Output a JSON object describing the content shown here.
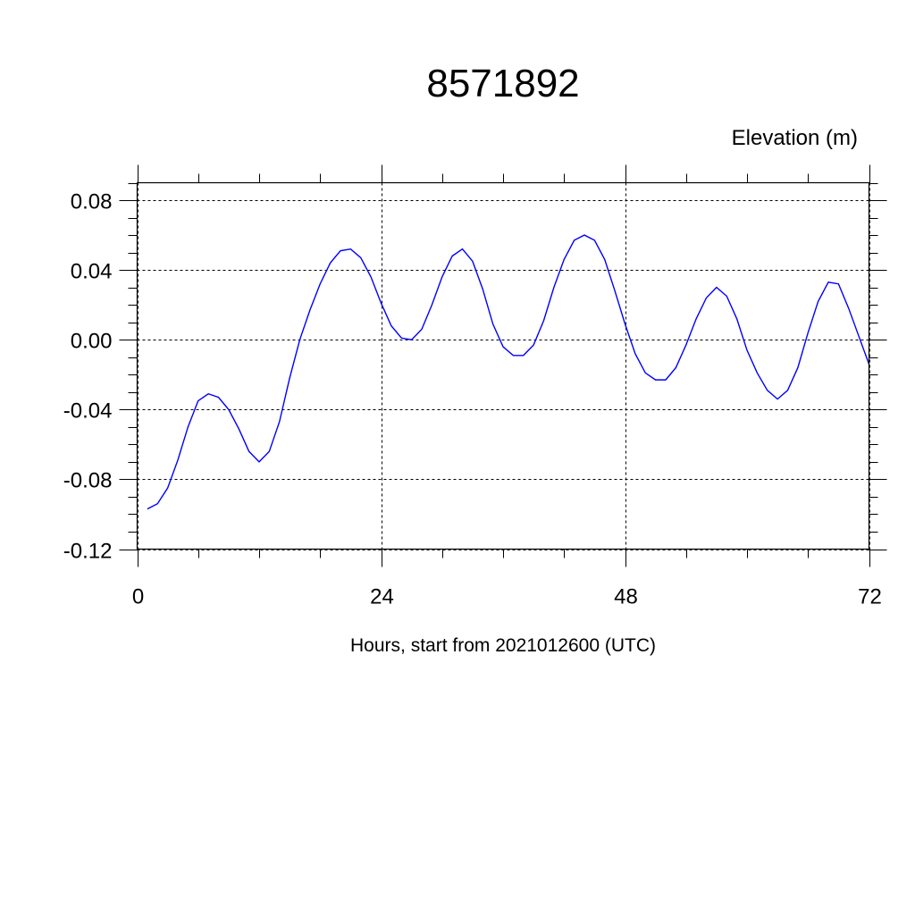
{
  "chart_data": {
    "type": "line",
    "title": "8571892",
    "ylabel": "Elevation (m)",
    "xlabel": "Hours, start from 2021012600 (UTC)",
    "xlim": [
      0,
      72
    ],
    "ylim": [
      -0.12,
      0.09
    ],
    "xticks": [
      0,
      24,
      48,
      72
    ],
    "xtick_labels": [
      "0",
      "24",
      "48",
      "72"
    ],
    "yticks": [
      -0.12,
      -0.08,
      -0.04,
      0.0,
      0.04,
      0.08
    ],
    "ytick_labels": [
      "-0.12",
      "-0.08",
      "-0.04",
      "0.00",
      "0.04",
      "0.08"
    ],
    "grid": true,
    "line_color": "#0000ff",
    "series": [
      {
        "x": [
          1,
          2,
          3,
          4,
          5,
          6,
          7,
          8,
          9,
          10,
          11,
          12,
          13,
          14,
          15,
          16,
          17,
          18,
          19,
          20,
          21,
          22,
          23,
          24,
          25,
          26,
          27,
          28,
          29,
          30,
          31,
          32,
          33,
          34,
          35,
          36,
          37,
          38,
          39,
          40,
          41,
          42,
          43,
          44,
          45,
          46,
          47,
          48,
          49,
          50,
          51,
          52,
          53,
          54,
          55,
          56,
          57,
          58,
          59,
          60,
          61,
          62,
          63,
          64,
          65,
          66,
          67,
          68,
          69,
          70,
          71,
          72
        ],
        "values": [
          -0.097,
          -0.094,
          -0.085,
          -0.069,
          -0.05,
          -0.035,
          -0.031,
          -0.033,
          -0.04,
          -0.051,
          -0.064,
          -0.07,
          -0.064,
          -0.047,
          -0.022,
          0.0,
          0.017,
          0.032,
          0.044,
          0.051,
          0.052,
          0.047,
          0.036,
          0.021,
          0.008,
          0.001,
          0.0,
          0.006,
          0.02,
          0.036,
          0.048,
          0.052,
          0.045,
          0.029,
          0.009,
          -0.004,
          -0.009,
          -0.009,
          -0.003,
          0.011,
          0.03,
          0.046,
          0.057,
          0.06,
          0.057,
          0.046,
          0.028,
          0.009,
          -0.008,
          -0.019,
          -0.023,
          -0.023,
          -0.016,
          -0.003,
          0.012,
          0.024,
          0.03,
          0.025,
          0.012,
          -0.006,
          -0.019,
          -0.029,
          -0.034,
          -0.029,
          -0.016,
          0.004,
          0.022,
          0.033,
          0.032,
          0.018,
          0.002,
          -0.014
        ]
      }
    ]
  }
}
